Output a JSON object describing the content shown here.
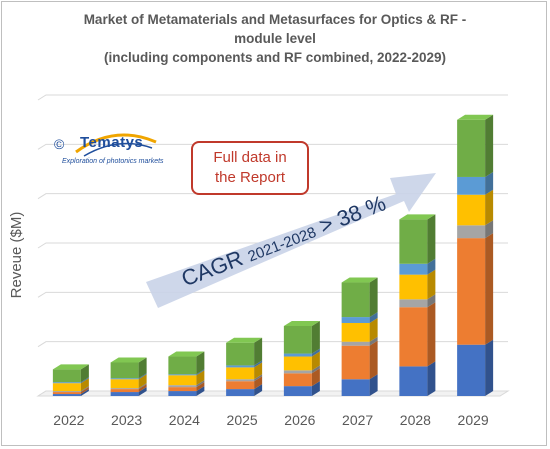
{
  "chart_data": {
    "type": "bar",
    "stacked": true,
    "title_lines": [
      "Market of Metamaterials and Metasurfaces for Optics & RF -",
      "module level",
      "(including components and RF combined, 2022-2029)"
    ],
    "ylabel": "Reveue ($M)",
    "categories": [
      "2022",
      "2023",
      "2024",
      "2025",
      "2026",
      "2027",
      "2028",
      "2029"
    ],
    "ylim": [
      0,
      300
    ],
    "grid": true,
    "series": [
      {
        "color": "#4472c4",
        "values": [
          2,
          4,
          5,
          7,
          10,
          17,
          30,
          52
        ]
      },
      {
        "color": "#ed7d31",
        "values": [
          2,
          3,
          4,
          8,
          13,
          34,
          60,
          108
        ]
      },
      {
        "color": "#a5a5a5",
        "values": [
          1,
          1,
          2,
          2,
          3,
          4,
          8,
          13
        ]
      },
      {
        "color": "#ffc000",
        "values": [
          8,
          9,
          10,
          12,
          14,
          19,
          25,
          31
        ]
      },
      {
        "color": "#5b9bd5",
        "values": [
          1,
          1,
          1,
          2,
          3,
          6,
          11,
          18
        ]
      },
      {
        "color": "#70ad47",
        "values": [
          13,
          16,
          18,
          23,
          28,
          35,
          45,
          58
        ]
      }
    ]
  },
  "logo": {
    "copyright": "©",
    "name": "Tematys",
    "tagline": "Exploration of photonics markets"
  },
  "callout": {
    "line1": "Full data in",
    "line2": "the Report"
  },
  "cagr": {
    "main": "CAGR",
    "period": "2021-2028",
    "value": "> 38 %"
  }
}
